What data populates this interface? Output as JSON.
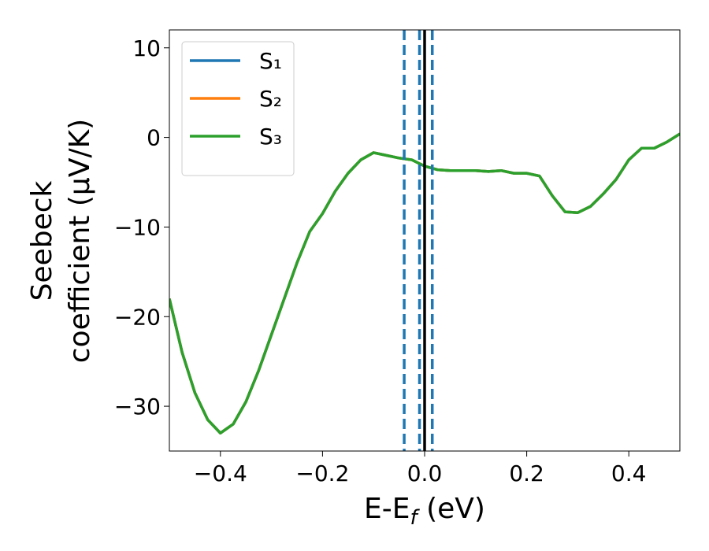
{
  "chart_data": {
    "type": "line",
    "xlabel": [
      "E-E",
      "f",
      " (eV)"
    ],
    "ylabel": [
      "Seebeck",
      "coefficient  (μV/K)"
    ],
    "x": [
      -0.5,
      -0.475,
      -0.45,
      -0.425,
      -0.4,
      -0.375,
      -0.35,
      -0.325,
      -0.3,
      -0.275,
      -0.25,
      -0.225,
      -0.2,
      -0.175,
      -0.15,
      -0.125,
      -0.1,
      -0.075,
      -0.05,
      -0.025,
      0,
      0.025,
      0.05,
      0.075,
      0.1,
      0.125,
      0.15,
      0.175,
      0.2,
      0.225,
      0.25,
      0.275,
      0.3,
      0.325,
      0.35,
      0.375,
      0.4,
      0.425,
      0.45,
      0.475,
      0.5
    ],
    "series": [
      {
        "name": "S₁",
        "color": "#1f77b4",
        "values": [
          -18,
          -24,
          -28.5,
          -31.5,
          -33,
          -32,
          -29.5,
          -26,
          -22,
          -18,
          -14,
          -10.5,
          -8.5,
          -6,
          -4,
          -2.5,
          -1.7,
          -2,
          -2.3,
          -2.5,
          -3.2,
          -3.6,
          -3.7,
          -3.7,
          -3.7,
          -3.8,
          -3.7,
          -4,
          -4,
          -4.3,
          -6.5,
          -8.3,
          -8.4,
          -7.7,
          -6.3,
          -4.7,
          -2.5,
          -1.2,
          -1.2,
          -0.5,
          0.4
        ]
      },
      {
        "name": "S₂",
        "color": "#ff7f0e",
        "values": [
          -18,
          -24,
          -28.5,
          -31.5,
          -33,
          -32,
          -29.5,
          -26,
          -22,
          -18,
          -14,
          -10.5,
          -8.5,
          -6,
          -4,
          -2.5,
          -1.7,
          -2,
          -2.3,
          -2.5,
          -3.2,
          -3.6,
          -3.7,
          -3.7,
          -3.7,
          -3.8,
          -3.7,
          -4,
          -4,
          -4.3,
          -6.5,
          -8.3,
          -8.4,
          -7.7,
          -6.3,
          -4.7,
          -2.5,
          -1.2,
          -1.2,
          -0.5,
          0.4
        ]
      },
      {
        "name": "S₃",
        "color": "#2ca02c",
        "values": [
          -18,
          -24,
          -28.5,
          -31.5,
          -33,
          -32,
          -29.5,
          -26,
          -22,
          -18,
          -14,
          -10.5,
          -8.5,
          -6,
          -4,
          -2.5,
          -1.7,
          -2,
          -2.3,
          -2.5,
          -3.2,
          -3.6,
          -3.7,
          -3.7,
          -3.7,
          -3.8,
          -3.7,
          -4,
          -4,
          -4.3,
          -6.5,
          -8.3,
          -8.4,
          -7.7,
          -6.3,
          -4.7,
          -2.5,
          -1.2,
          -1.2,
          -0.5,
          0.4
        ]
      }
    ],
    "vlines": [
      {
        "x": -0.04,
        "color": "#1f77b4",
        "dashed": true
      },
      {
        "x": -0.01,
        "color": "#1f77b4",
        "dashed": true
      },
      {
        "x": 0.015,
        "color": "#1f77b4",
        "dashed": true
      },
      {
        "x": 0,
        "color": "#000000",
        "dashed": false
      }
    ],
    "xlim": [
      -0.5,
      0.5
    ],
    "ylim": [
      -35,
      12
    ],
    "xticks": [
      {
        "value": -0.4,
        "label": "−0.4"
      },
      {
        "value": -0.2,
        "label": "−0.2"
      },
      {
        "value": 0,
        "label": "0.0"
      },
      0.2,
      0.4
    ],
    "yticks": [
      {
        "value": -30,
        "label": "−30"
      },
      {
        "value": -20,
        "label": "−20"
      },
      {
        "value": -10,
        "label": "−10"
      },
      0,
      10
    ],
    "legend": "upper left",
    "grid": false
  }
}
